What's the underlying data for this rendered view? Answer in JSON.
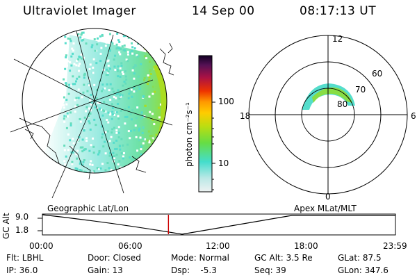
{
  "header": {
    "instrument": "Ultraviolet Imager",
    "date": "14 Sep 00",
    "time": "08:17:13 UT"
  },
  "colorbar": {
    "label": "photon cm⁻²s⁻¹",
    "ticks": [
      "100",
      "10"
    ]
  },
  "polar": {
    "mlt_labels": [
      "12",
      "18",
      "6",
      "0"
    ],
    "lat_labels": [
      "60",
      "70",
      "80"
    ]
  },
  "labels": {
    "left_caption": "Geographic Lat/Lon",
    "right_caption": "Apex MLat/MLT",
    "alt_axis": "GC Alt",
    "alt_ticks": [
      "9.0",
      "1.8"
    ],
    "time_ticks": [
      "00:00",
      "06:00",
      "12:00",
      "18:00",
      "23:59"
    ]
  },
  "footer": {
    "row1": {
      "filter": "Flt: LBHL",
      "door": "Door: Closed",
      "mode": "Mode: Normal",
      "gc_alt": "GC Alt: 3.5 Re",
      "glat": "GLat: 87.5"
    },
    "row2": {
      "ip": "IP: 36.0",
      "gain": "Gain: 13",
      "dsp": "Dsp:    -5.3",
      "seq": "Seq: 39",
      "glon": "GLon: 347.6"
    }
  },
  "colors": {
    "marker": "#cc0000",
    "scale": [
      "#dde8e8",
      "#55ddcc",
      "#88dd22",
      "#ccdd00",
      "#ffaa00",
      "#ee3300",
      "#aa0033",
      "#660055",
      "#110022"
    ]
  },
  "orbit_marker_fraction": 0.357
}
